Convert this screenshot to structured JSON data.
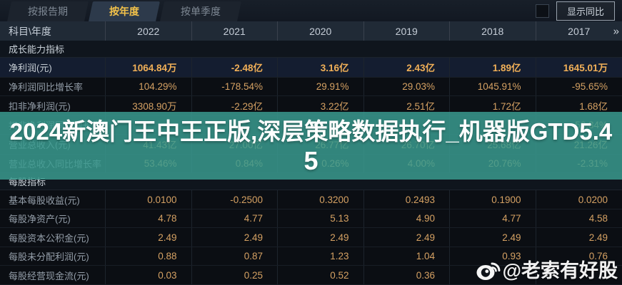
{
  "tabs": [
    {
      "label": "按报告期",
      "active": false
    },
    {
      "label": "按年度",
      "active": true
    },
    {
      "label": "按单季度",
      "active": false
    }
  ],
  "toolbar": {
    "compare_label": "显示同比",
    "compare_checked": false
  },
  "table": {
    "corner_label": "科目\\年度",
    "years": [
      "2022",
      "2021",
      "2020",
      "2019",
      "2018",
      "2017"
    ],
    "more_years_icon": "»",
    "sections": [
      {
        "title": "成长能力指标",
        "rows": [
          {
            "label": "净利润(元)",
            "highlight": true,
            "values": [
              "1064.84万",
              "-2.48亿",
              "3.16亿",
              "2.43亿",
              "1.89亿",
              "1645.01万"
            ]
          },
          {
            "label": "净利润同比增长率",
            "highlight": false,
            "values": [
              "104.29%",
              "-178.54%",
              "29.91%",
              "29.03%",
              "1045.91%",
              "-95.65%"
            ]
          },
          {
            "label": "扣非净利润(元)",
            "highlight": false,
            "values": [
              "3308.90万",
              "-2.29亿",
              "3.22亿",
              "2.51亿",
              "1.72亿",
              "1.68亿"
            ]
          },
          {
            "label": "扣非净利润同比增长率",
            "highlight": false,
            "values": [
              "",
              "",
              "",
              "",
              "",
              "56.34%"
            ]
          },
          {
            "label": "营业总收入(元)",
            "highlight": false,
            "values": [
              "41.43亿",
              "27.00亿",
              "26.77亿",
              "26.70亿",
              "25.68亿",
              "21.26亿"
            ]
          },
          {
            "label": "营业总收入同比增长率",
            "highlight": false,
            "values": [
              "53.46%",
              "0.84%",
              "0.26%",
              "4.00%",
              "20.76%",
              "-2.31%"
            ]
          }
        ]
      },
      {
        "title": "每股指标",
        "rows": [
          {
            "label": "基本每股收益(元)",
            "highlight": false,
            "values": [
              "0.0100",
              "-0.2500",
              "0.3200",
              "0.2493",
              "0.1900",
              "0.0200"
            ]
          },
          {
            "label": "每股净资产(元)",
            "highlight": false,
            "values": [
              "4.78",
              "4.77",
              "5.13",
              "4.90",
              "4.77",
              "4.58"
            ]
          },
          {
            "label": "每股资本公积金(元)",
            "highlight": false,
            "values": [
              "2.49",
              "2.49",
              "2.49",
              "2.49",
              "2.49",
              "2.49"
            ]
          },
          {
            "label": "每股未分配利润(元)",
            "highlight": false,
            "values": [
              "0.88",
              "0.87",
              "1.23",
              "1.04",
              "0.93",
              "0.76"
            ]
          },
          {
            "label": "每股经营现金流(元)",
            "highlight": false,
            "values": [
              "0.03",
              "0.25",
              "0.52",
              "0.36",
              "",
              ""
            ]
          }
        ]
      }
    ]
  },
  "banner": {
    "line1": "2024新澳门王中王正版,深层策略数据执行_机器版GTD5.4",
    "line2": "5",
    "bg_color": "#3a9c90",
    "text_color": "#ffffff"
  },
  "watermark": {
    "text": "@老索有好股"
  },
  "colors": {
    "active_tab_text": "#f3c24a",
    "value_text": "#d5a163",
    "highlight_value_text": "#f1b058",
    "header_bg": "#202a36",
    "page_bg": "#0a0d12"
  }
}
